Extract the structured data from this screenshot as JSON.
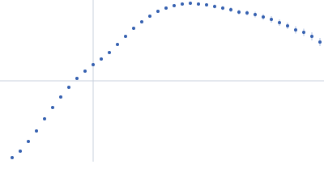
{
  "chart_data": {
    "type": "scatter",
    "color": "#3560b0",
    "error_color": "#a9bde0",
    "x": [
      0.15,
      0.25,
      0.35,
      0.45,
      0.55,
      0.65,
      0.75,
      0.85,
      0.95,
      1.05,
      1.15,
      1.25,
      1.35,
      1.45,
      1.55,
      1.65,
      1.75,
      1.85,
      1.95,
      2.05,
      2.15,
      2.25,
      2.35,
      2.45,
      2.55,
      2.65,
      2.75,
      2.85,
      2.95,
      3.05,
      3.15,
      3.25,
      3.35,
      3.45,
      3.55,
      3.65,
      3.75,
      3.85,
      3.95
    ],
    "values": [
      0.05,
      0.13,
      0.25,
      0.38,
      0.53,
      0.67,
      0.8,
      0.92,
      1.03,
      1.12,
      1.2,
      1.27,
      1.35,
      1.45,
      1.55,
      1.65,
      1.73,
      1.8,
      1.86,
      1.9,
      1.93,
      1.95,
      1.96,
      1.95,
      1.94,
      1.92,
      1.9,
      1.88,
      1.85,
      1.84,
      1.82,
      1.79,
      1.76,
      1.72,
      1.68,
      1.63,
      1.6,
      1.55,
      1.48
    ],
    "errors": [
      0.01,
      0.01,
      0.01,
      0.01,
      0.01,
      0.01,
      0.01,
      0.01,
      0.01,
      0.01,
      0.01,
      0.01,
      0.01,
      0.01,
      0.01,
      0.01,
      0.01,
      0.01,
      0.015,
      0.015,
      0.015,
      0.02,
      0.02,
      0.02,
      0.02,
      0.025,
      0.025,
      0.03,
      0.03,
      0.03,
      0.035,
      0.035,
      0.04,
      0.04,
      0.04,
      0.045,
      0.045,
      0.05,
      0.05
    ],
    "xlim": [
      0,
      4
    ],
    "ylim": [
      0,
      2
    ],
    "xticks": [
      1.15
    ],
    "yticks": [
      1
    ],
    "grid": true
  }
}
